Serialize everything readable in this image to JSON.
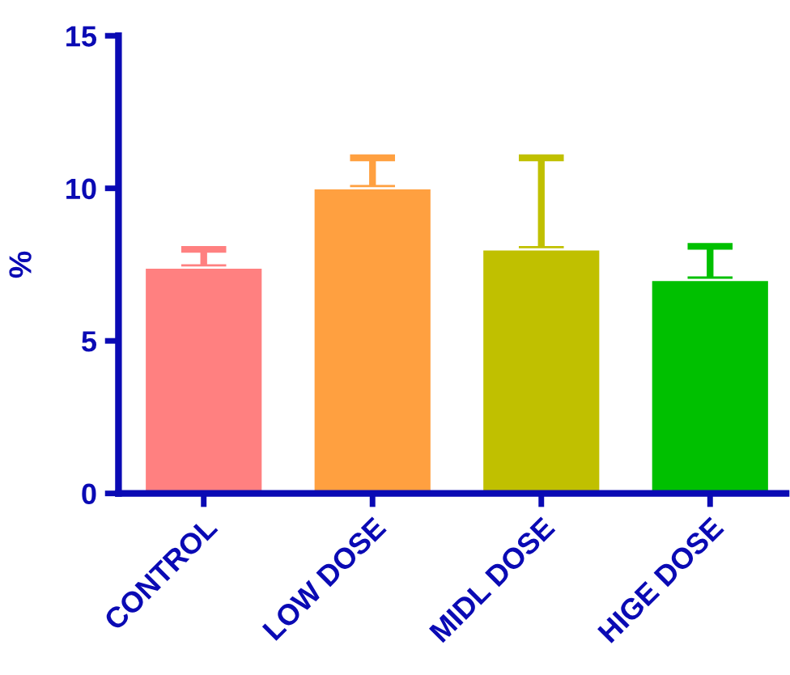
{
  "chart_data": {
    "type": "bar",
    "ylabel": "%",
    "categories": [
      "CONTROL",
      "LOW DOSE",
      "MIDL DOSE",
      "HIGE DOSE"
    ],
    "values": [
      7.4,
      10.0,
      8.0,
      7.0
    ],
    "errors": [
      [
        7.4,
        8.0
      ],
      [
        10.0,
        11.0
      ],
      [
        8.0,
        11.0
      ],
      [
        7.0,
        8.1
      ]
    ],
    "colors": [
      "#ff8080",
      "#ffa040",
      "#c0c000",
      "#00c000"
    ],
    "ylim": [
      0,
      15
    ],
    "yticks": [
      0,
      5,
      10,
      15
    ],
    "grid": false
  }
}
